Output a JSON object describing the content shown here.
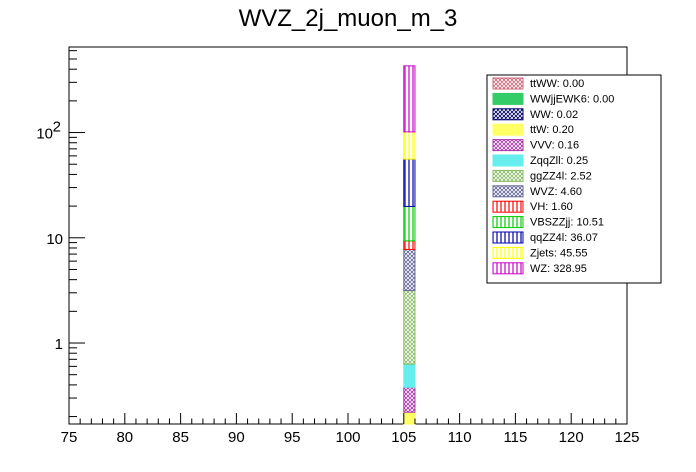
{
  "chart_data": {
    "type": "bar",
    "stacked": true,
    "title": "WVZ_2j_muon_m_3",
    "xlabel": "",
    "ylabel": "",
    "xlim": [
      75,
      125
    ],
    "ylim": [
      0.17,
      650
    ],
    "log_y": true,
    "grid": false,
    "legend_position": "top-right",
    "x_ticks": [
      "75",
      "80",
      "85",
      "90",
      "95",
      "100",
      "105",
      "110",
      "115",
      "120",
      "125"
    ],
    "y_ticks": [
      {
        "value": 1,
        "label": "1"
      },
      {
        "value": 10,
        "label": "10"
      },
      {
        "value": 100,
        "label": "10",
        "exponent": "2"
      }
    ],
    "bin": [
      105,
      106
    ],
    "series": [
      {
        "name": "ttWW",
        "legend": "ttWW: 0.00",
        "value": 0.0,
        "color": "#cc6677",
        "pattern": "cross"
      },
      {
        "name": "WWjjEWK6",
        "legend": "WWjjEWK6: 0.00",
        "value": 0.0,
        "color": "#33cc66",
        "pattern": "solid"
      },
      {
        "name": "WW",
        "legend": "WW: 0.02",
        "value": 0.02,
        "color": "#000066",
        "pattern": "cross"
      },
      {
        "name": "ttW",
        "legend": "ttW: 0.20",
        "value": 0.2,
        "color": "#ffff66",
        "pattern": "solid"
      },
      {
        "name": "VVV",
        "legend": "VVV: 0.16",
        "value": 0.16,
        "color": "#aa33aa",
        "pattern": "cross"
      },
      {
        "name": "ZqqZll",
        "legend": "ZqqZll: 0.25",
        "value": 0.25,
        "color": "#66eeee",
        "pattern": "solid"
      },
      {
        "name": "ggZZ4l",
        "legend": "ggZZ4l: 2.52",
        "value": 2.52,
        "color": "#88bb66",
        "pattern": "cross"
      },
      {
        "name": "WVZ",
        "legend": "WVZ: 4.60",
        "value": 4.6,
        "color": "#666699",
        "pattern": "cross"
      },
      {
        "name": "VH",
        "legend": "VH: 1.60",
        "value": 1.6,
        "color": "#ff0000",
        "pattern": "vlines"
      },
      {
        "name": "VBSZZjj",
        "legend": "VBSZZjj: 10.51",
        "value": 10.51,
        "color": "#00cc00",
        "pattern": "vlines"
      },
      {
        "name": "qqZZ4l",
        "legend": "qqZZ4l: 36.07",
        "value": 36.07,
        "color": "#0000aa",
        "pattern": "vlines"
      },
      {
        "name": "Zjets",
        "legend": "Zjets: 45.55",
        "value": 45.55,
        "color": "#ffff00",
        "pattern": "vlines"
      },
      {
        "name": "WZ",
        "legend": "WZ: 328.95",
        "value": 328.95,
        "color": "#cc00cc",
        "pattern": "vlines"
      }
    ]
  }
}
